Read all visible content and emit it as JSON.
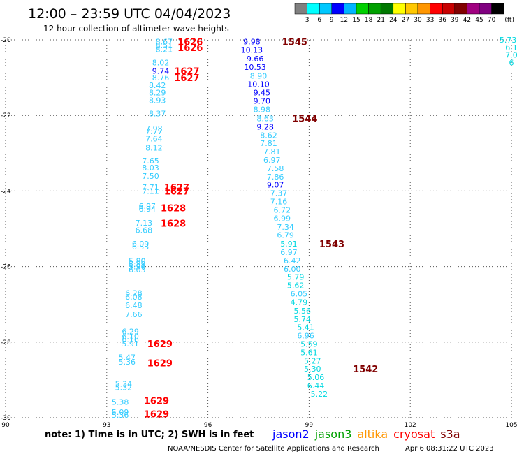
{
  "chart_data": {
    "type": "scatter",
    "title": "12:00 – 23:59 UTC 04/04/2023",
    "subtitle": "12 hour collection of altimeter wave heights",
    "x_ticks": [
      90,
      93,
      96,
      99,
      102,
      105
    ],
    "y_ticks": [
      -20,
      -22,
      -24,
      -26,
      -28,
      -30
    ],
    "xlim": [
      90,
      105
    ],
    "ylim": [
      -30,
      -20
    ],
    "grid": true,
    "colorbar": {
      "values": [
        "3",
        "6",
        "9",
        "12",
        "15",
        "18",
        "21",
        "24",
        "27",
        "30",
        "33",
        "36",
        "39",
        "42",
        "45",
        "70"
      ],
      "unit": "(ft)",
      "colors": [
        "#808080",
        "#00ffff",
        "#00c8ff",
        "#0000ff",
        "#00b4ff",
        "#00d000",
        "#00a000",
        "#007800",
        "#ffff00",
        "#ffc800",
        "#ff9600",
        "#ff0000",
        "#c80000",
        "#800000",
        "#a00080",
        "#800080",
        "#000000"
      ]
    },
    "colors": {
      "t1": "#33ccff",
      "t2": "#00d8e0",
      "t3": "#0000ff",
      "t4": "#3399ff",
      "time_red": "#ff0000",
      "time_dark": "#800000"
    },
    "note": "note: 1) Time is in UTC; 2) SWH is in feet",
    "missions": [
      {
        "label": "jason2",
        "color": "#0000ff"
      },
      {
        "label": "jason3",
        "color": "#00a000"
      },
      {
        "label": "altika",
        "color": "#ff9600"
      },
      {
        "label": "cryosat",
        "color": "#ff0000"
      },
      {
        "label": "s3a",
        "color": "#800000"
      }
    ],
    "credit": "NOAA/NESDIS Center for Satellite Applications and Research",
    "timestamp": "Apr  6 08:31:22 UTC 2023",
    "swh_points": [
      {
        "x": 94.7,
        "y": -20.05,
        "v": "8.67",
        "c": "t1"
      },
      {
        "x": 94.7,
        "y": -20.15,
        "v": "8.51",
        "c": "t1"
      },
      {
        "x": 94.7,
        "y": -20.25,
        "v": "8.21",
        "c": "t1"
      },
      {
        "x": 94.6,
        "y": -20.6,
        "v": "8.02",
        "c": "t1"
      },
      {
        "x": 94.6,
        "y": -20.82,
        "v": "9.74",
        "c": "t3"
      },
      {
        "x": 94.6,
        "y": -21.0,
        "v": "8.76",
        "c": "t1"
      },
      {
        "x": 94.5,
        "y": -21.2,
        "v": "8.42",
        "c": "t1"
      },
      {
        "x": 94.5,
        "y": -21.4,
        "v": "8.29",
        "c": "t1"
      },
      {
        "x": 94.5,
        "y": -21.6,
        "v": "8.93",
        "c": "t1"
      },
      {
        "x": 94.5,
        "y": -21.95,
        "v": "8.37",
        "c": "t1"
      },
      {
        "x": 94.4,
        "y": -22.35,
        "v": "7.98",
        "c": "t1"
      },
      {
        "x": 94.4,
        "y": -22.42,
        "v": "7.77",
        "c": "t1"
      },
      {
        "x": 94.4,
        "y": -22.62,
        "v": "7.64",
        "c": "t1"
      },
      {
        "x": 94.4,
        "y": -22.86,
        "v": "8.12",
        "c": "t1"
      },
      {
        "x": 94.3,
        "y": -23.2,
        "v": "7.65",
        "c": "t1"
      },
      {
        "x": 94.3,
        "y": -23.38,
        "v": "8.03",
        "c": "t1"
      },
      {
        "x": 94.3,
        "y": -23.6,
        "v": "7.50",
        "c": "t1"
      },
      {
        "x": 94.3,
        "y": -23.9,
        "v": "7.71",
        "c": "t1"
      },
      {
        "x": 94.3,
        "y": -24.0,
        "v": "7.11",
        "c": "t1"
      },
      {
        "x": 94.2,
        "y": -24.4,
        "v": "6.97",
        "c": "t1"
      },
      {
        "x": 94.2,
        "y": -24.47,
        "v": "6.94",
        "c": "t1"
      },
      {
        "x": 94.1,
        "y": -24.84,
        "v": "7.13",
        "c": "t1"
      },
      {
        "x": 94.1,
        "y": -25.04,
        "v": "6.68",
        "c": "t1"
      },
      {
        "x": 94.0,
        "y": -25.4,
        "v": "6.09",
        "c": "t1"
      },
      {
        "x": 94.0,
        "y": -25.47,
        "v": "6.33",
        "c": "t1"
      },
      {
        "x": 93.9,
        "y": -25.85,
        "v": "5.80",
        "c": "t1"
      },
      {
        "x": 93.9,
        "y": -25.93,
        "v": "5.89",
        "c": "t1"
      },
      {
        "x": 93.9,
        "y": -26.0,
        "v": "5.96",
        "c": "t1"
      },
      {
        "x": 93.9,
        "y": -26.08,
        "v": "6.03",
        "c": "t1"
      },
      {
        "x": 93.8,
        "y": -26.7,
        "v": "6.28",
        "c": "t1"
      },
      {
        "x": 93.8,
        "y": -26.8,
        "v": "6.08",
        "c": "t1"
      },
      {
        "x": 93.8,
        "y": -27.02,
        "v": "6.48",
        "c": "t1"
      },
      {
        "x": 93.8,
        "y": -27.26,
        "v": "7.66",
        "c": "t1"
      },
      {
        "x": 93.7,
        "y": -27.72,
        "v": "6.29",
        "c": "t1"
      },
      {
        "x": 93.7,
        "y": -27.85,
        "v": "6.10",
        "c": "t1"
      },
      {
        "x": 93.7,
        "y": -27.93,
        "v": "6.16",
        "c": "t1"
      },
      {
        "x": 93.7,
        "y": -28.04,
        "v": "5.91",
        "c": "t1"
      },
      {
        "x": 93.6,
        "y": -28.4,
        "v": "5.47",
        "c": "t1"
      },
      {
        "x": 93.6,
        "y": -28.52,
        "v": "5.36",
        "c": "t1"
      },
      {
        "x": 93.5,
        "y": -29.1,
        "v": "5.34",
        "c": "t1"
      },
      {
        "x": 93.5,
        "y": -29.2,
        "v": "5.32",
        "c": "t1"
      },
      {
        "x": 93.4,
        "y": -29.58,
        "v": "5.38",
        "c": "t1"
      },
      {
        "x": 93.4,
        "y": -29.85,
        "v": "5.09",
        "c": "t1"
      },
      {
        "x": 93.4,
        "y": -29.93,
        "v": "5.36",
        "c": "t1"
      },
      {
        "x": 97.3,
        "y": -20.05,
        "v": "9.98",
        "c": "t3"
      },
      {
        "x": 97.3,
        "y": -20.27,
        "v": "10.13",
        "c": "t3"
      },
      {
        "x": 97.4,
        "y": -20.5,
        "v": "9.66",
        "c": "t3"
      },
      {
        "x": 97.4,
        "y": -20.72,
        "v": "10.53",
        "c": "t3"
      },
      {
        "x": 97.5,
        "y": -20.95,
        "v": "8.90",
        "c": "t1"
      },
      {
        "x": 97.5,
        "y": -21.17,
        "v": "10.10",
        "c": "t3"
      },
      {
        "x": 97.6,
        "y": -21.4,
        "v": "9.45",
        "c": "t3"
      },
      {
        "x": 97.6,
        "y": -21.62,
        "v": "9.70",
        "c": "t3"
      },
      {
        "x": 97.6,
        "y": -21.84,
        "v": "8.98",
        "c": "t1"
      },
      {
        "x": 97.7,
        "y": -22.08,
        "v": "8.63",
        "c": "t1"
      },
      {
        "x": 97.7,
        "y": -22.3,
        "v": "9.28",
        "c": "t3"
      },
      {
        "x": 97.8,
        "y": -22.52,
        "v": "8.62",
        "c": "t1"
      },
      {
        "x": 97.8,
        "y": -22.74,
        "v": "7.81",
        "c": "t1"
      },
      {
        "x": 97.9,
        "y": -22.96,
        "v": "7.81",
        "c": "t1"
      },
      {
        "x": 97.9,
        "y": -23.18,
        "v": "6.97",
        "c": "t1"
      },
      {
        "x": 98.0,
        "y": -23.4,
        "v": "7.58",
        "c": "t1"
      },
      {
        "x": 98.0,
        "y": -23.62,
        "v": "7.86",
        "c": "t1"
      },
      {
        "x": 98.0,
        "y": -23.84,
        "v": "9.07",
        "c": "t3"
      },
      {
        "x": 98.1,
        "y": -24.06,
        "v": "7.37",
        "c": "t1"
      },
      {
        "x": 98.1,
        "y": -24.28,
        "v": "7.16",
        "c": "t1"
      },
      {
        "x": 98.2,
        "y": -24.5,
        "v": "6.72",
        "c": "t1"
      },
      {
        "x": 98.2,
        "y": -24.72,
        "v": "6.99",
        "c": "t1"
      },
      {
        "x": 98.3,
        "y": -24.95,
        "v": "7.34",
        "c": "t1"
      },
      {
        "x": 98.3,
        "y": -25.17,
        "v": "6.79",
        "c": "t1"
      },
      {
        "x": 98.4,
        "y": -25.4,
        "v": "5.91",
        "c": "t2"
      },
      {
        "x": 98.4,
        "y": -25.62,
        "v": "6.97",
        "c": "t1"
      },
      {
        "x": 98.5,
        "y": -25.84,
        "v": "6.42",
        "c": "t1"
      },
      {
        "x": 98.5,
        "y": -26.06,
        "v": "6.00",
        "c": "t1"
      },
      {
        "x": 98.6,
        "y": -26.28,
        "v": "5.79",
        "c": "t2"
      },
      {
        "x": 98.6,
        "y": -26.5,
        "v": "5.62",
        "c": "t2"
      },
      {
        "x": 98.7,
        "y": -26.72,
        "v": "6.05",
        "c": "t1"
      },
      {
        "x": 98.7,
        "y": -26.94,
        "v": "4.79",
        "c": "t2"
      },
      {
        "x": 98.8,
        "y": -27.17,
        "v": "5.56",
        "c": "t2"
      },
      {
        "x": 98.8,
        "y": -27.39,
        "v": "5.74",
        "c": "t2"
      },
      {
        "x": 98.9,
        "y": -27.61,
        "v": "5.41",
        "c": "t2"
      },
      {
        "x": 98.9,
        "y": -27.83,
        "v": "6.96",
        "c": "t1"
      },
      {
        "x": 99.0,
        "y": -28.05,
        "v": "5.59",
        "c": "t2"
      },
      {
        "x": 99.0,
        "y": -28.27,
        "v": "5.61",
        "c": "t2"
      },
      {
        "x": 99.1,
        "y": -28.49,
        "v": "5.27",
        "c": "t2"
      },
      {
        "x": 99.1,
        "y": -28.71,
        "v": "5.30",
        "c": "t2"
      },
      {
        "x": 99.2,
        "y": -28.93,
        "v": "5.06",
        "c": "t2"
      },
      {
        "x": 99.2,
        "y": -29.15,
        "v": "6.44",
        "c": "t2"
      },
      {
        "x": 99.3,
        "y": -29.37,
        "v": "5.22",
        "c": "t2"
      },
      {
        "x": 104.9,
        "y": -20.0,
        "v": "5.73",
        "c": "t2"
      },
      {
        "x": 105.0,
        "y": -20.2,
        "v": "6.1",
        "c": "t2"
      },
      {
        "x": 105.0,
        "y": -20.4,
        "v": "7.0",
        "c": "t2"
      },
      {
        "x": 105.0,
        "y": -20.6,
        "v": "6",
        "c": "t2"
      }
    ],
    "time_labels": [
      {
        "x": 95.1,
        "y": -20.05,
        "v": "1626",
        "c": "time_red"
      },
      {
        "x": 95.1,
        "y": -20.2,
        "v": "1626",
        "c": "time_red"
      },
      {
        "x": 95.0,
        "y": -20.82,
        "v": "1627",
        "c": "time_red"
      },
      {
        "x": 95.0,
        "y": -21.0,
        "v": "1627",
        "c": "time_red"
      },
      {
        "x": 94.7,
        "y": -23.9,
        "v": "1627",
        "c": "time_red"
      },
      {
        "x": 94.7,
        "y": -24.0,
        "v": "1627",
        "c": "time_red"
      },
      {
        "x": 94.6,
        "y": -24.45,
        "v": "1628",
        "c": "time_red"
      },
      {
        "x": 94.6,
        "y": -24.85,
        "v": "1628",
        "c": "time_red"
      },
      {
        "x": 94.2,
        "y": -28.04,
        "v": "1629",
        "c": "time_red"
      },
      {
        "x": 94.2,
        "y": -28.55,
        "v": "1629",
        "c": "time_red"
      },
      {
        "x": 94.1,
        "y": -29.55,
        "v": "1629",
        "c": "time_red"
      },
      {
        "x": 94.1,
        "y": -29.9,
        "v": "1629",
        "c": "time_red"
      },
      {
        "x": 98.2,
        "y": -20.05,
        "v": "1545",
        "c": "time_dark"
      },
      {
        "x": 98.5,
        "y": -22.08,
        "v": "1544",
        "c": "time_dark"
      },
      {
        "x": 99.3,
        "y": -25.4,
        "v": "1543",
        "c": "time_dark"
      },
      {
        "x": 100.3,
        "y": -28.71,
        "v": "1542",
        "c": "time_dark"
      }
    ]
  }
}
